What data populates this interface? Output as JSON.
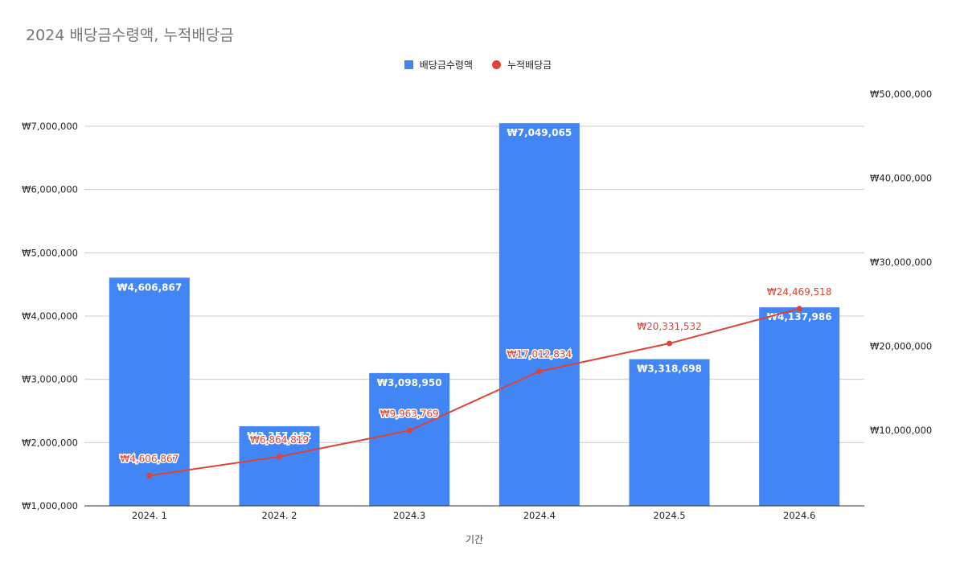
{
  "chart_data": {
    "type": "bar",
    "title": "2024 배당금수령액, 누적배당금",
    "xlabel": "기간",
    "categories": [
      "2024. 1",
      "2024. 2",
      "2024.3",
      "2024.4",
      "2024.5",
      "2024.6"
    ],
    "series": [
      {
        "name": "배당금수령액",
        "type": "bar",
        "axis": "left",
        "color": "#4285f4",
        "values": [
          4606867,
          2257952,
          3098950,
          7049065,
          3318698,
          4137986
        ],
        "labels": [
          "₩4,606,867",
          "₩2,257,952",
          "₩3,098,950",
          "₩7,049,065",
          "₩3,318,698",
          "₩4,137,986"
        ]
      },
      {
        "name": "누적배당금",
        "type": "line",
        "axis": "right",
        "color": "#db4437",
        "values": [
          4606867,
          6864819,
          9963769,
          17012834,
          20331532,
          24469518
        ],
        "labels": [
          "₩4,606,867",
          "₩6,864,819",
          "₩9,963,769",
          "₩17,012,834",
          "₩20,331,532",
          "₩24,469,518"
        ]
      }
    ],
    "left_axis": {
      "ylim": [
        1000000,
        7000000
      ],
      "ticks": [
        1000000,
        2000000,
        3000000,
        4000000,
        5000000,
        6000000,
        7000000
      ],
      "tick_labels": [
        "₩1,000,000",
        "₩2,000,000",
        "₩3,000,000",
        "₩4,000,000",
        "₩5,000,000",
        "₩6,000,000",
        "₩7,000,000"
      ]
    },
    "right_axis": {
      "ticks": [
        10000000,
        20000000,
        30000000,
        40000000,
        50000000
      ],
      "tick_labels": [
        "₩10,000,000",
        "₩20,000,000",
        "₩30,000,000",
        "₩40,000,000",
        "₩50,000,000"
      ]
    },
    "grid": true,
    "legend_position": "top"
  }
}
